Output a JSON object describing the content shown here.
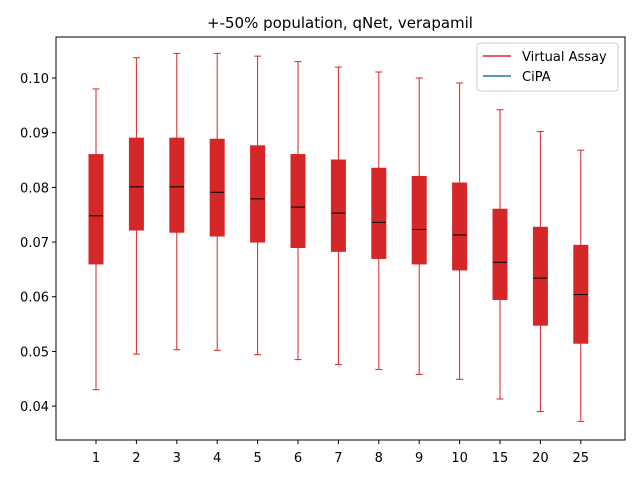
{
  "chart_data": {
    "type": "box",
    "title": "+-50% population, qNet, verapamil",
    "xlabel": "",
    "ylabel": "",
    "categories": [
      "1",
      "2",
      "3",
      "4",
      "5",
      "6",
      "7",
      "8",
      "9",
      "10",
      "15",
      "20",
      "25"
    ],
    "ylim": [
      0.0338,
      0.1075
    ],
    "yticks": [
      0.04,
      0.05,
      0.06,
      0.07,
      0.08,
      0.09,
      0.1
    ],
    "ytick_labels": [
      "0.04",
      "0.05",
      "0.06",
      "0.07",
      "0.08",
      "0.09",
      "0.10"
    ],
    "series": [
      {
        "name": "Virtual Assay",
        "color": "#d62728",
        "boxes": [
          {
            "min": 0.043,
            "q1": 0.066,
            "median": 0.0748,
            "q3": 0.086,
            "max": 0.098
          },
          {
            "min": 0.0495,
            "q1": 0.0722,
            "median": 0.0801,
            "q3": 0.089,
            "max": 0.1037
          },
          {
            "min": 0.0503,
            "q1": 0.0718,
            "median": 0.0801,
            "q3": 0.089,
            "max": 0.1045
          },
          {
            "min": 0.0502,
            "q1": 0.0711,
            "median": 0.0791,
            "q3": 0.0888,
            "max": 0.1045
          },
          {
            "min": 0.0494,
            "q1": 0.07,
            "median": 0.0779,
            "q3": 0.0876,
            "max": 0.104
          },
          {
            "min": 0.0485,
            "q1": 0.069,
            "median": 0.0764,
            "q3": 0.086,
            "max": 0.103
          },
          {
            "min": 0.0476,
            "q1": 0.0683,
            "median": 0.0753,
            "q3": 0.085,
            "max": 0.102
          },
          {
            "min": 0.0467,
            "q1": 0.067,
            "median": 0.0736,
            "q3": 0.0835,
            "max": 0.1011
          },
          {
            "min": 0.0458,
            "q1": 0.066,
            "median": 0.0723,
            "q3": 0.082,
            "max": 0.1
          },
          {
            "min": 0.0449,
            "q1": 0.0649,
            "median": 0.0713,
            "q3": 0.0808,
            "max": 0.0991
          },
          {
            "min": 0.0413,
            "q1": 0.0595,
            "median": 0.0663,
            "q3": 0.076,
            "max": 0.0942
          },
          {
            "min": 0.039,
            "q1": 0.0548,
            "median": 0.0634,
            "q3": 0.0727,
            "max": 0.0902
          },
          {
            "min": 0.0372,
            "q1": 0.0515,
            "median": 0.0604,
            "q3": 0.0694,
            "max": 0.0868
          }
        ]
      },
      {
        "name": "CiPA",
        "color": "#1f77b4",
        "boxes": []
      }
    ],
    "legend": {
      "position": "top-right"
    },
    "grid": false
  }
}
